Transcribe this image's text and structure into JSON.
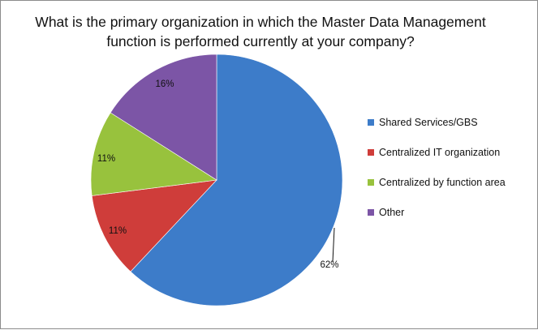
{
  "chart_data": {
    "type": "pie",
    "title_lines": [
      "What is the primary organization in which the Master Data Management",
      "function is performed currently at your company?"
    ],
    "slices": [
      {
        "name": "Shared Services/GBS",
        "value": 62,
        "label": "62%",
        "color": "#3d7cc9"
      },
      {
        "name": "Centralized IT organization",
        "value": 11,
        "label": "11%",
        "color": "#cf3d3a"
      },
      {
        "name": "Centralized by function area",
        "value": 11,
        "label": "11%",
        "color": "#98c23d"
      },
      {
        "name": "Other",
        "value": 16,
        "label": "16%",
        "color": "#7c55a6"
      }
    ],
    "legend_position": "right",
    "start_angle_deg": 0,
    "direction": "clockwise"
  }
}
